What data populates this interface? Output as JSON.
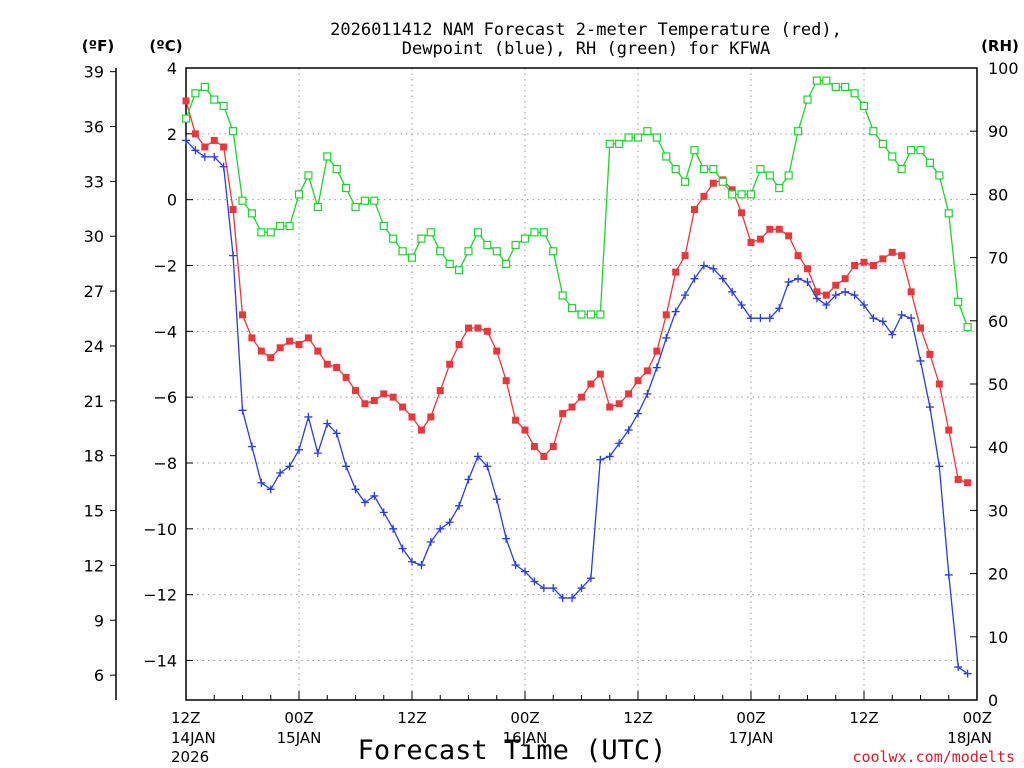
{
  "chart_data": {
    "type": "line",
    "title": "2026011412 NAM Forecast 2-meter Temperature (red),",
    "title_line2": "Dewpoint (blue), RH (green) for KFWA",
    "xlabel": "Forecast Time (UTC)",
    "credit": "coolwx.com/modelts",
    "units": {
      "fahrenheit": "(ºF)",
      "celsius": "(ºC)",
      "rh": "(RH)"
    },
    "x_hours_range": [
      0,
      84
    ],
    "x_ticks": [
      {
        "hour": 0,
        "label": "12Z",
        "date": "14JAN",
        "year": "2026"
      },
      {
        "hour": 12,
        "label": "00Z",
        "date": "15JAN",
        "year": ""
      },
      {
        "hour": 24,
        "label": "12Z",
        "date": "",
        "year": ""
      },
      {
        "hour": 36,
        "label": "00Z",
        "date": "16JAN",
        "year": ""
      },
      {
        "hour": 48,
        "label": "12Z",
        "date": "",
        "year": ""
      },
      {
        "hour": 60,
        "label": "00Z",
        "date": "17JAN",
        "year": ""
      },
      {
        "hour": 72,
        "label": "12Z",
        "date": "",
        "year": ""
      },
      {
        "hour": 84,
        "label": "00Z",
        "date": "18JAN",
        "year": ""
      }
    ],
    "celsius_axis": {
      "range": [
        -15.2,
        4.0
      ],
      "ticks": [
        4,
        2,
        0,
        -2,
        -4,
        -6,
        -8,
        -10,
        -12,
        -14
      ],
      "tick_labels": [
        "4",
        "2",
        "0",
        "−2",
        "−4",
        "−6",
        "−8",
        "−10",
        "−12",
        "−14"
      ]
    },
    "fahrenheit_axis": {
      "ticks": [
        39,
        36,
        33,
        30,
        27,
        24,
        21,
        18,
        15,
        12,
        9,
        6
      ],
      "tick_labels": [
        "39",
        "36",
        "33",
        "30",
        "27",
        "24",
        "21",
        "18",
        "15",
        "12",
        "9",
        "6"
      ]
    },
    "rh_axis": {
      "range": [
        0,
        100
      ],
      "ticks": [
        100,
        90,
        80,
        70,
        60,
        50,
        40,
        30,
        20,
        10,
        0
      ],
      "tick_labels": [
        "100",
        "90",
        "80",
        "70",
        "60",
        "50",
        "40",
        "30",
        "20",
        "10",
        "0"
      ]
    },
    "series": [
      {
        "name": "Temperature",
        "units": "C",
        "color": "#e8383c",
        "marker": "filled-square",
        "points": [
          [
            0,
            3.0
          ],
          [
            1,
            2.0
          ],
          [
            2,
            1.6
          ],
          [
            3,
            1.8
          ],
          [
            4,
            1.6
          ],
          [
            5,
            -0.3
          ],
          [
            6,
            -3.5
          ],
          [
            7,
            -4.2
          ],
          [
            8,
            -4.6
          ],
          [
            9,
            -4.8
          ],
          [
            10,
            -4.5
          ],
          [
            11,
            -4.3
          ],
          [
            12,
            -4.4
          ],
          [
            13,
            -4.2
          ],
          [
            14,
            -4.6
          ],
          [
            15,
            -5.0
          ],
          [
            16,
            -5.1
          ],
          [
            17,
            -5.4
          ],
          [
            18,
            -5.8
          ],
          [
            19,
            -6.2
          ],
          [
            20,
            -6.1
          ],
          [
            21,
            -5.9
          ],
          [
            22,
            -6.0
          ],
          [
            23,
            -6.3
          ],
          [
            24,
            -6.6
          ],
          [
            25,
            -7.0
          ],
          [
            26,
            -6.6
          ],
          [
            27,
            -5.8
          ],
          [
            28,
            -5.0
          ],
          [
            29,
            -4.4
          ],
          [
            30,
            -3.9
          ],
          [
            31,
            -3.9
          ],
          [
            32,
            -4.0
          ],
          [
            33,
            -4.6
          ],
          [
            34,
            -5.5
          ],
          [
            35,
            -6.7
          ],
          [
            36,
            -7.0
          ],
          [
            37,
            -7.5
          ],
          [
            38,
            -7.8
          ],
          [
            39,
            -7.5
          ],
          [
            40,
            -6.5
          ],
          [
            41,
            -6.3
          ],
          [
            42,
            -6.0
          ],
          [
            43,
            -5.6
          ],
          [
            44,
            -5.3
          ],
          [
            45,
            -6.3
          ],
          [
            46,
            -6.2
          ],
          [
            47,
            -5.9
          ],
          [
            48,
            -5.5
          ],
          [
            49,
            -5.2
          ],
          [
            50,
            -4.6
          ],
          [
            51,
            -3.5
          ],
          [
            52,
            -2.2
          ],
          [
            53,
            -1.7
          ],
          [
            54,
            -0.3
          ],
          [
            55,
            0.1
          ],
          [
            56,
            0.5
          ],
          [
            57,
            0.6
          ],
          [
            58,
            0.3
          ],
          [
            59,
            -0.4
          ],
          [
            60,
            -1.3
          ],
          [
            61,
            -1.2
          ],
          [
            62,
            -0.9
          ],
          [
            63,
            -0.9
          ],
          [
            64,
            -1.1
          ],
          [
            65,
            -1.7
          ],
          [
            66,
            -2.1
          ],
          [
            67,
            -2.8
          ],
          [
            68,
            -2.9
          ],
          [
            69,
            -2.6
          ],
          [
            70,
            -2.4
          ],
          [
            71,
            -2.0
          ],
          [
            72,
            -1.9
          ],
          [
            73,
            -2.0
          ],
          [
            74,
            -1.8
          ],
          [
            75,
            -1.6
          ],
          [
            76,
            -1.7
          ],
          [
            77,
            -2.8
          ],
          [
            78,
            -3.9
          ],
          [
            79,
            -4.7
          ],
          [
            80,
            -5.6
          ],
          [
            81,
            -7.0
          ],
          [
            82,
            -8.5
          ],
          [
            83,
            -8.6
          ]
        ]
      },
      {
        "name": "Dewpoint",
        "units": "C",
        "color": "#2a3ed8",
        "marker": "plus",
        "points": [
          [
            0,
            1.8
          ],
          [
            1,
            1.5
          ],
          [
            2,
            1.3
          ],
          [
            3,
            1.3
          ],
          [
            4,
            1.0
          ],
          [
            5,
            -1.7
          ],
          [
            6,
            -6.4
          ],
          [
            7,
            -7.5
          ],
          [
            8,
            -8.6
          ],
          [
            9,
            -8.8
          ],
          [
            10,
            -8.3
          ],
          [
            11,
            -8.1
          ],
          [
            12,
            -7.6
          ],
          [
            13,
            -6.6
          ],
          [
            14,
            -7.7
          ],
          [
            15,
            -6.8
          ],
          [
            16,
            -7.1
          ],
          [
            17,
            -8.1
          ],
          [
            18,
            -8.8
          ],
          [
            19,
            -9.2
          ],
          [
            20,
            -9.0
          ],
          [
            21,
            -9.5
          ],
          [
            22,
            -10.0
          ],
          [
            23,
            -10.6
          ],
          [
            24,
            -11.0
          ],
          [
            25,
            -11.1
          ],
          [
            26,
            -10.4
          ],
          [
            27,
            -10.0
          ],
          [
            28,
            -9.8
          ],
          [
            29,
            -9.3
          ],
          [
            30,
            -8.5
          ],
          [
            31,
            -7.8
          ],
          [
            32,
            -8.1
          ],
          [
            33,
            -9.1
          ],
          [
            34,
            -10.3
          ],
          [
            35,
            -11.1
          ],
          [
            36,
            -11.3
          ],
          [
            37,
            -11.6
          ],
          [
            38,
            -11.8
          ],
          [
            39,
            -11.8
          ],
          [
            40,
            -12.1
          ],
          [
            41,
            -12.1
          ],
          [
            42,
            -11.8
          ],
          [
            43,
            -11.5
          ],
          [
            44,
            -7.9
          ],
          [
            45,
            -7.8
          ],
          [
            46,
            -7.4
          ],
          [
            47,
            -7.0
          ],
          [
            48,
            -6.5
          ],
          [
            49,
            -5.9
          ],
          [
            50,
            -5.1
          ],
          [
            51,
            -4.2
          ],
          [
            52,
            -3.4
          ],
          [
            53,
            -2.9
          ],
          [
            54,
            -2.4
          ],
          [
            55,
            -2.0
          ],
          [
            56,
            -2.1
          ],
          [
            57,
            -2.4
          ],
          [
            58,
            -2.8
          ],
          [
            59,
            -3.2
          ],
          [
            60,
            -3.6
          ],
          [
            61,
            -3.6
          ],
          [
            62,
            -3.6
          ],
          [
            63,
            -3.3
          ],
          [
            64,
            -2.5
          ],
          [
            65,
            -2.4
          ],
          [
            66,
            -2.5
          ],
          [
            67,
            -3.0
          ],
          [
            68,
            -3.2
          ],
          [
            69,
            -2.9
          ],
          [
            70,
            -2.8
          ],
          [
            71,
            -2.9
          ],
          [
            72,
            -3.2
          ],
          [
            73,
            -3.6
          ],
          [
            74,
            -3.7
          ],
          [
            75,
            -4.1
          ],
          [
            76,
            -3.5
          ],
          [
            77,
            -3.6
          ],
          [
            78,
            -4.9
          ],
          [
            79,
            -6.3
          ],
          [
            80,
            -8.1
          ],
          [
            81,
            -11.4
          ],
          [
            82,
            -14.2
          ],
          [
            83,
            -14.4
          ]
        ]
      },
      {
        "name": "RH",
        "units": "%",
        "color": "#1fd22f",
        "marker": "open-square",
        "points": [
          [
            0,
            92
          ],
          [
            1,
            96
          ],
          [
            2,
            97
          ],
          [
            3,
            95
          ],
          [
            4,
            94
          ],
          [
            5,
            90
          ],
          [
            6,
            79
          ],
          [
            7,
            77
          ],
          [
            8,
            74
          ],
          [
            9,
            74
          ],
          [
            10,
            75
          ],
          [
            11,
            75
          ],
          [
            12,
            80
          ],
          [
            13,
            83
          ],
          [
            14,
            78
          ],
          [
            15,
            86
          ],
          [
            16,
            84
          ],
          [
            17,
            81
          ],
          [
            18,
            78
          ],
          [
            19,
            79
          ],
          [
            20,
            79
          ],
          [
            21,
            75
          ],
          [
            22,
            73
          ],
          [
            23,
            71
          ],
          [
            24,
            70
          ],
          [
            25,
            73
          ],
          [
            26,
            74
          ],
          [
            27,
            71
          ],
          [
            28,
            69
          ],
          [
            29,
            68
          ],
          [
            30,
            71
          ],
          [
            31,
            74
          ],
          [
            32,
            72
          ],
          [
            33,
            71
          ],
          [
            34,
            69
          ],
          [
            35,
            72
          ],
          [
            36,
            73
          ],
          [
            37,
            74
          ],
          [
            38,
            74
          ],
          [
            39,
            71
          ],
          [
            40,
            64
          ],
          [
            41,
            62
          ],
          [
            42,
            61
          ],
          [
            43,
            61
          ],
          [
            44,
            61
          ],
          [
            45,
            88
          ],
          [
            46,
            88
          ],
          [
            47,
            89
          ],
          [
            48,
            89
          ],
          [
            49,
            90
          ],
          [
            50,
            89
          ],
          [
            51,
            86
          ],
          [
            52,
            84
          ],
          [
            53,
            82
          ],
          [
            54,
            87
          ],
          [
            55,
            84
          ],
          [
            56,
            84
          ],
          [
            57,
            82
          ],
          [
            58,
            80
          ],
          [
            59,
            80
          ],
          [
            60,
            80
          ],
          [
            61,
            84
          ],
          [
            62,
            83
          ],
          [
            63,
            81
          ],
          [
            64,
            83
          ],
          [
            65,
            90
          ],
          [
            66,
            95
          ],
          [
            67,
            98
          ],
          [
            68,
            98
          ],
          [
            69,
            97
          ],
          [
            70,
            97
          ],
          [
            71,
            96
          ],
          [
            72,
            94
          ],
          [
            73,
            90
          ],
          [
            74,
            88
          ],
          [
            75,
            86
          ],
          [
            76,
            84
          ],
          [
            77,
            87
          ],
          [
            78,
            87
          ],
          [
            79,
            85
          ],
          [
            80,
            83
          ],
          [
            81,
            77
          ],
          [
            82,
            63
          ],
          [
            83,
            59
          ]
        ]
      }
    ]
  }
}
